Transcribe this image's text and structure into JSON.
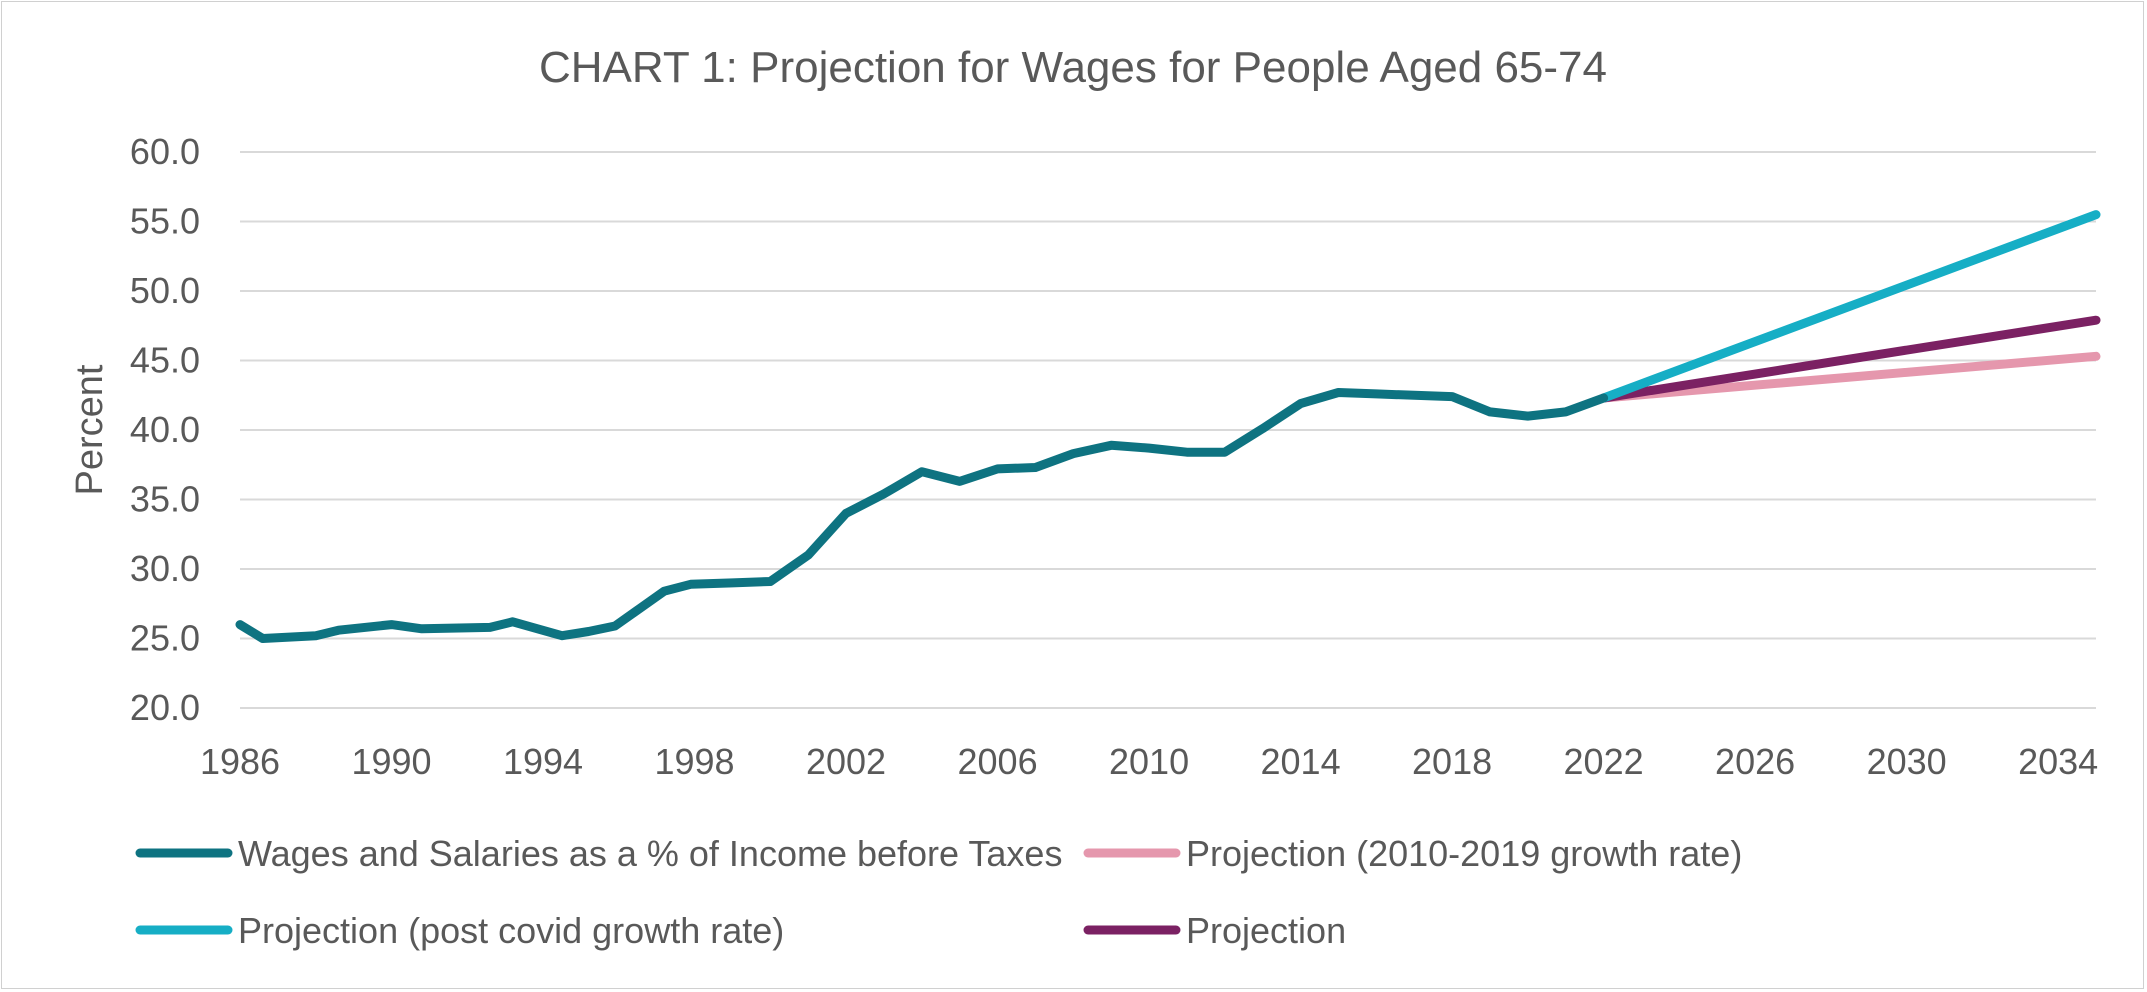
{
  "chart_data": {
    "type": "line",
    "title": "CHART 1: Projection for Wages for People Aged 65-74",
    "xlabel": "",
    "ylabel": "Percent",
    "xlim": [
      1986,
      2035
    ],
    "ylim": [
      20,
      60
    ],
    "y_ticks": [
      20,
      25,
      30,
      35,
      40,
      45,
      50,
      55,
      60
    ],
    "y_tick_labels": [
      "20.0",
      "25.0",
      "30.0",
      "35.0",
      "40.0",
      "45.0",
      "50.0",
      "55.0",
      "60.0"
    ],
    "x_ticks": [
      1986,
      1990,
      1994,
      1998,
      2002,
      2006,
      2010,
      2014,
      2018,
      2022,
      2026,
      2030,
      2034
    ],
    "x_tick_labels": [
      "1986",
      "1990",
      "1994",
      "1998",
      "2002",
      "2006",
      "2010",
      "2014",
      "2018",
      "2022",
      "2026",
      "2030",
      "2034"
    ],
    "grid": true,
    "legend_position": "bottom",
    "series": [
      {
        "name": "Wages and Salaries as a % of Income before Taxes",
        "color": "#0e7381",
        "x": [
          1986,
          1986.6,
          1988,
          1988.6,
          1990,
          1990.8,
          1992.6,
          1993.2,
          1994.5,
          1995.2,
          1995.9,
          1997.2,
          1997.9,
          1999,
          2000,
          2001,
          2002,
          2003,
          2004,
          2005,
          2006,
          2007,
          2008,
          2009,
          2010,
          2011,
          2012,
          2013,
          2014,
          2015,
          2016,
          2017,
          2018,
          2019,
          2020,
          2021,
          2022
        ],
        "y": [
          26.0,
          25.0,
          25.2,
          25.6,
          26.0,
          25.7,
          25.8,
          26.2,
          25.2,
          25.5,
          25.9,
          28.4,
          28.9,
          29.0,
          29.1,
          31.0,
          34.0,
          35.4,
          37.0,
          36.3,
          37.2,
          37.3,
          38.3,
          38.9,
          38.7,
          38.4,
          38.4,
          40.1,
          41.9,
          42.7,
          42.6,
          42.5,
          42.4,
          41.3,
          41.0,
          41.3,
          42.3
        ]
      },
      {
        "name": "Projection (2010-2019 growth rate)",
        "color": "#e597ad",
        "x": [
          2022,
          2035
        ],
        "y": [
          42.3,
          45.3
        ]
      },
      {
        "name": "Projection (post covid growth rate)",
        "color": "#16aec5",
        "x": [
          2022,
          2035
        ],
        "y": [
          42.3,
          55.5
        ]
      },
      {
        "name": "Projection",
        "color": "#7b2163",
        "x": [
          2022,
          2035
        ],
        "y": [
          42.3,
          47.9
        ]
      }
    ]
  }
}
